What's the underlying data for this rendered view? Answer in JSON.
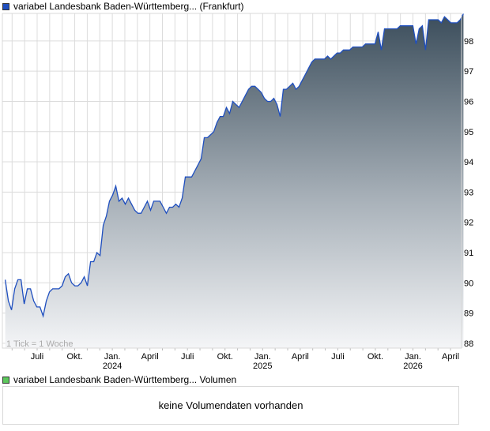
{
  "price_legend": {
    "label": "variabel Landesbank Baden-Württemberg... (Frankfurt)",
    "color": "#1f4fbf"
  },
  "volume_legend": {
    "label": "variabel Landesbank Baden-Württemberg... Volumen",
    "color": "#5cc85c"
  },
  "volume_panel": {
    "message": "keine Volumendaten vorhanden"
  },
  "chart_data": {
    "type": "area",
    "title": "variabel Landesbank Baden-Württemberg... (Frankfurt)",
    "interval_note": "1 Tick = 1 Woche",
    "x_range_months": [
      3.45,
      39.5
    ],
    "x_start_month": 3.45,
    "x_step_month": 0.2523,
    "ylim": [
      87.84,
      98.91
    ],
    "yticks": [
      88,
      89,
      90,
      91,
      92,
      93,
      94,
      95,
      96,
      97,
      98
    ],
    "xticks": [
      {
        "month": 6,
        "label": "Juli",
        "year": ""
      },
      {
        "month": 9,
        "label": "Okt.",
        "year": ""
      },
      {
        "month": 12,
        "label": "Jan.",
        "year": "2024"
      },
      {
        "month": 15,
        "label": "April",
        "year": ""
      },
      {
        "month": 18,
        "label": "Juli",
        "year": ""
      },
      {
        "month": 21,
        "label": "Okt.",
        "year": ""
      },
      {
        "month": 24,
        "label": "Jan.",
        "year": "2025"
      },
      {
        "month": 27,
        "label": "April",
        "year": ""
      },
      {
        "month": 30,
        "label": "Juli",
        "year": ""
      },
      {
        "month": 33,
        "label": "Okt.",
        "year": ""
      },
      {
        "month": 36,
        "label": "Jan.",
        "year": "2026"
      },
      {
        "month": 39,
        "label": "April",
        "year": ""
      }
    ],
    "grid": true,
    "values": [
      90.1,
      89.4,
      89.1,
      89.8,
      90.1,
      90.1,
      89.3,
      89.8,
      89.8,
      89.4,
      89.2,
      89.2,
      88.9,
      89.4,
      89.7,
      89.8,
      89.8,
      89.8,
      89.9,
      90.2,
      90.3,
      90.0,
      89.9,
      89.9,
      90.0,
      90.2,
      89.9,
      90.7,
      90.7,
      91.0,
      90.9,
      91.9,
      92.2,
      92.7,
      92.9,
      93.2,
      92.7,
      92.8,
      92.6,
      92.8,
      92.6,
      92.4,
      92.3,
      92.3,
      92.5,
      92.7,
      92.4,
      92.7,
      92.7,
      92.7,
      92.5,
      92.3,
      92.5,
      92.5,
      92.6,
      92.5,
      92.8,
      93.5,
      93.5,
      93.5,
      93.7,
      93.9,
      94.1,
      94.8,
      94.8,
      94.9,
      95.0,
      95.3,
      95.5,
      95.5,
      95.8,
      95.6,
      96.0,
      95.9,
      95.8,
      96.0,
      96.2,
      96.4,
      96.5,
      96.5,
      96.4,
      96.3,
      96.1,
      96.0,
      96.0,
      96.1,
      95.9,
      95.5,
      96.4,
      96.4,
      96.5,
      96.6,
      96.4,
      96.5,
      96.7,
      96.9,
      97.1,
      97.3,
      97.4,
      97.4,
      97.4,
      97.4,
      97.5,
      97.4,
      97.5,
      97.6,
      97.6,
      97.7,
      97.7,
      97.7,
      97.8,
      97.8,
      97.8,
      97.8,
      97.9,
      97.9,
      97.9,
      97.9,
      98.3,
      97.7,
      98.4,
      98.4,
      98.4,
      98.4,
      98.4,
      98.5,
      98.5,
      98.5,
      98.5,
      98.5,
      97.9,
      98.4,
      98.5,
      97.7,
      98.7,
      98.7,
      98.7,
      98.7,
      98.6,
      98.8,
      98.7,
      98.6,
      98.6,
      98.6,
      98.7,
      98.9
    ]
  }
}
